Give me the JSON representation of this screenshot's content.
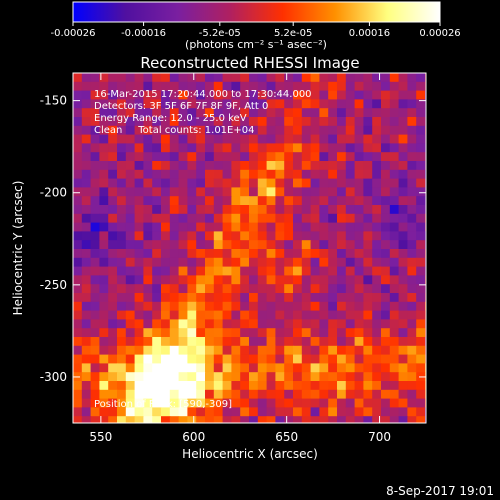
{
  "colorbar": {
    "tick_labels": [
      "-0.00026",
      "-0.00016",
      "-5.2e-05",
      "5.2e-05",
      "0.00016",
      "0.00026"
    ],
    "tick_values": [
      -0.00026,
      -0.00016,
      -5.2e-05,
      5.2e-05,
      0.00016,
      0.00026
    ],
    "range": [
      -0.00026,
      0.00026
    ],
    "unit_label": "(photons cm⁻² s⁻¹ asec⁻²)"
  },
  "chart_data": {
    "type": "heatmap",
    "title": "Reconstructed RHESSI Image",
    "xlabel": "Heliocentric X (arcsec)",
    "ylabel": "Heliocentric Y (arcsec)",
    "xlim": [
      535,
      725
    ],
    "ylim": [
      -325,
      -135
    ],
    "x_ticks": [
      550,
      600,
      650,
      700
    ],
    "y_ticks": [
      -300,
      -250,
      -200,
      -150
    ],
    "x_tick_labels": [
      "550",
      "600",
      "650",
      "700"
    ],
    "y_tick_labels": [
      "-300",
      "-250",
      "-200",
      "-150"
    ],
    "annotations": [
      "16-Mar-2015 17:20:44.000 to 17:30:44.000",
      "Detectors: 3F 5F 6F 7F 8F 9F, Att 0",
      "Energy Range: 12.0 - 25.0 keV",
      "Clean     Total counts: 1.01E+04"
    ],
    "peak_label": "Position of Peak: [590,-309]",
    "peak_position": [
      590,
      -309
    ],
    "colormap": [
      "#0000ff",
      "#5010a0",
      "#7a1fa0",
      "#b02060",
      "#ff3000",
      "#ff9000",
      "#ffff80",
      "#ffffff"
    ]
  },
  "footer": {
    "date_text": "8-Sep-2017 19:01"
  }
}
